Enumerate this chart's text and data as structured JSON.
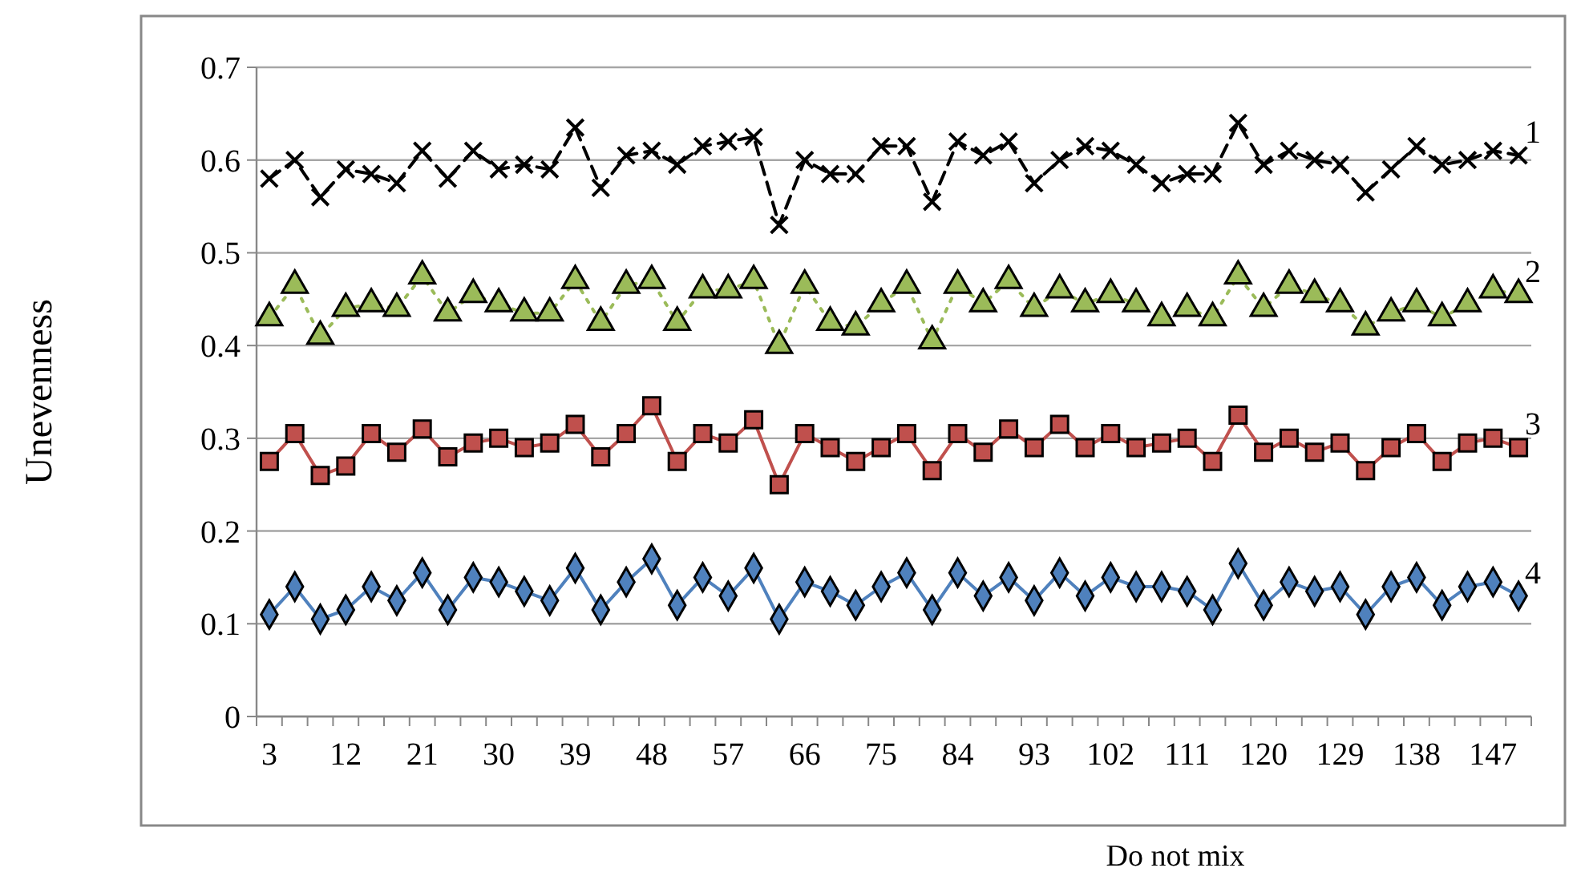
{
  "chart_data": {
    "type": "line",
    "xlabel": "Do not mix",
    "ylabel": "Unevenness",
    "categories": [
      "3",
      null,
      null,
      "12",
      null,
      null,
      "21",
      null,
      null,
      "30",
      null,
      null,
      "39",
      null,
      null,
      "48",
      null,
      null,
      "57",
      null,
      null,
      "66",
      null,
      null,
      "75",
      null,
      null,
      "84",
      null,
      null,
      "93",
      null,
      null,
      "102",
      null,
      null,
      "111",
      null,
      null,
      "120",
      null,
      null,
      "129",
      null,
      null,
      "138",
      null,
      null,
      "147",
      null
    ],
    "ylim": [
      0,
      0.7
    ],
    "yticks": [
      0,
      0.1,
      0.2,
      0.3,
      0.4,
      0.5,
      0.6,
      0.7
    ],
    "grid": "y",
    "legend": false,
    "series": [
      {
        "name": "1",
        "color": "#000000",
        "marker": "cross",
        "line_style": "dashed",
        "values": [
          0.58,
          0.6,
          0.56,
          0.59,
          0.585,
          0.575,
          0.61,
          0.58,
          0.61,
          0.59,
          0.595,
          0.59,
          0.635,
          0.57,
          0.605,
          0.61,
          0.595,
          0.615,
          0.62,
          0.625,
          0.53,
          0.6,
          0.585,
          0.585,
          0.615,
          0.615,
          0.555,
          0.62,
          0.605,
          0.62,
          0.575,
          0.6,
          0.615,
          0.61,
          0.595,
          0.575,
          0.585,
          0.585,
          0.64,
          0.595,
          0.61,
          0.6,
          0.595,
          0.565,
          0.59,
          0.615,
          0.595,
          0.6,
          0.61,
          0.605
        ]
      },
      {
        "name": "2",
        "color": "#9bbb59",
        "marker": "triangle",
        "line_style": "dotted",
        "values": [
          0.43,
          0.465,
          0.41,
          0.44,
          0.445,
          0.44,
          0.475,
          0.435,
          0.455,
          0.445,
          0.435,
          0.435,
          0.47,
          0.425,
          0.465,
          0.47,
          0.425,
          0.46,
          0.46,
          0.47,
          0.4,
          0.465,
          0.425,
          0.42,
          0.445,
          0.465,
          0.405,
          0.465,
          0.445,
          0.47,
          0.44,
          0.46,
          0.445,
          0.455,
          0.445,
          0.43,
          0.44,
          0.43,
          0.475,
          0.44,
          0.465,
          0.455,
          0.445,
          0.42,
          0.435,
          0.445,
          0.43,
          0.445,
          0.46,
          0.455
        ]
      },
      {
        "name": "3",
        "color": "#c0504d",
        "marker": "square",
        "line_style": "solid",
        "values": [
          0.275,
          0.305,
          0.26,
          0.27,
          0.305,
          0.285,
          0.31,
          0.28,
          0.295,
          0.3,
          0.29,
          0.295,
          0.315,
          0.28,
          0.305,
          0.335,
          0.275,
          0.305,
          0.295,
          0.32,
          0.25,
          0.305,
          0.29,
          0.275,
          0.29,
          0.305,
          0.265,
          0.305,
          0.285,
          0.31,
          0.29,
          0.315,
          0.29,
          0.305,
          0.29,
          0.295,
          0.3,
          0.275,
          0.325,
          0.285,
          0.3,
          0.285,
          0.295,
          0.265,
          0.29,
          0.305,
          0.275,
          0.295,
          0.3,
          0.29
        ]
      },
      {
        "name": "4",
        "color": "#4f81bd",
        "marker": "diamond",
        "line_style": "solid",
        "values": [
          0.11,
          0.14,
          0.105,
          0.115,
          0.14,
          0.125,
          0.155,
          0.115,
          0.15,
          0.145,
          0.135,
          0.125,
          0.16,
          0.115,
          0.145,
          0.17,
          0.12,
          0.15,
          0.13,
          0.16,
          0.105,
          0.145,
          0.135,
          0.12,
          0.14,
          0.155,
          0.115,
          0.155,
          0.13,
          0.15,
          0.125,
          0.155,
          0.13,
          0.15,
          0.14,
          0.14,
          0.135,
          0.115,
          0.165,
          0.12,
          0.145,
          0.135,
          0.14,
          0.11,
          0.14,
          0.15,
          0.12,
          0.14,
          0.145,
          0.13
        ]
      }
    ]
  }
}
